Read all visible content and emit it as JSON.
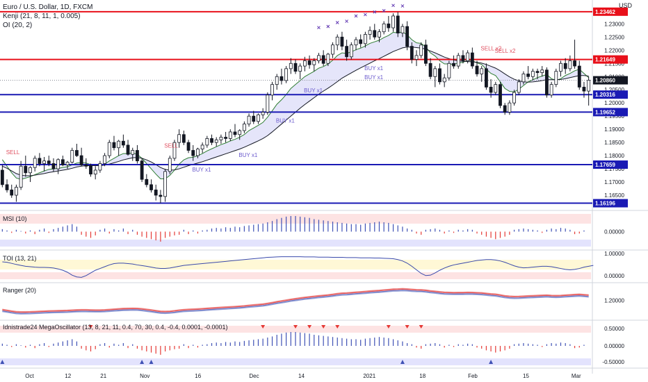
{
  "header": {
    "symbol": "Euro / U.S. Dollar, 1D, FXCM",
    "indicator1": "Kenji (21, 8, 11, 1, 0.005)",
    "indicator2": "OI (20, 2)",
    "currency": "USD"
  },
  "panes": {
    "msi": "MSI (10)",
    "toi": "TOI (13, 21)",
    "ranger": "Ranger (20)",
    "mega": "Idnistrade24 MegaOscillator (13, 8, 21, 11, 0.4, 70, 30, 0.4, -0.4, 0.0001, -0.0001)"
  },
  "colors": {
    "up": "#131722",
    "down": "#131722",
    "red_level": "#e8101a",
    "blue_level": "#1a1ab4",
    "signal_buy": "#6a5acd",
    "signal_sell": "#e05060",
    "band_fill": "#dcdcf8"
  },
  "chart_data": {
    "type": "candlestick",
    "ylim": [
      1.16,
      1.238
    ],
    "x_labels": [
      "Oct",
      "12",
      "21",
      "Nov",
      "16",
      "Dec",
      "14",
      "2021",
      "18",
      "Feb",
      "15",
      "Mar"
    ],
    "y_ticks": [
      "1.23000",
      "1.22500",
      "1.22000",
      "1.21500",
      "1.21000",
      "1.20500",
      "1.20000",
      "1.19500",
      "1.19000",
      "1.18500",
      "1.18000",
      "1.17500",
      "1.17000",
      "1.16500"
    ],
    "levels": [
      {
        "value": 1.23462,
        "label": "1.23462",
        "color": "red"
      },
      {
        "value": 1.21649,
        "label": "1.21649",
        "color": "red"
      },
      {
        "value": 1.20316,
        "label": "1.20316",
        "color": "blue"
      },
      {
        "value": 1.19652,
        "label": "1.19652",
        "color": "blue"
      },
      {
        "value": 1.17659,
        "label": "1.17659",
        "color": "blue"
      },
      {
        "value": 1.16196,
        "label": "1.16196",
        "color": "blue"
      }
    ],
    "last_price": {
      "value": 1.2086,
      "label": "1.20860"
    },
    "signals": [
      {
        "text": "SELL",
        "x_index": 2,
        "price": 1.1805,
        "kind": "sell"
      },
      {
        "text": "SELL",
        "x_index": 36,
        "price": 1.183,
        "kind": "sell"
      },
      {
        "text": "BUY x1",
        "x_index": 42,
        "price": 1.174,
        "kind": "buy"
      },
      {
        "text": "BUY x1",
        "x_index": 52,
        "price": 1.1795,
        "kind": "buy"
      },
      {
        "text": "BUY x1",
        "x_index": 60,
        "price": 1.1925,
        "kind": "buy"
      },
      {
        "text": "BUY x1",
        "x_index": 66,
        "price": 1.204,
        "kind": "buy"
      },
      {
        "text": "BUY x1",
        "x_index": 79,
        "price": 1.2125,
        "kind": "buy"
      },
      {
        "text": "BUY x1",
        "x_index": 79,
        "price": 1.209,
        "kind": "buy"
      },
      {
        "text": "SELL x2",
        "x_index": 104,
        "price": 1.22,
        "kind": "sell"
      },
      {
        "text": "SELL x2",
        "x_index": 107,
        "price": 1.219,
        "kind": "sell"
      }
    ],
    "oi_markers_price": [
      1.2286,
      1.229,
      1.2305,
      1.231,
      1.233,
      1.2335,
      1.2345,
      1.235,
      1.237,
      1.2368
    ],
    "candles": [
      [
        1.1745,
        1.1765,
        1.168,
        1.169
      ],
      [
        1.169,
        1.171,
        1.166,
        1.167
      ],
      [
        1.167,
        1.169,
        1.164,
        1.165
      ],
      [
        1.165,
        1.169,
        1.1625,
        1.168
      ],
      [
        1.168,
        1.178,
        1.167,
        1.176
      ],
      [
        1.176,
        1.18,
        1.172,
        1.1735
      ],
      [
        1.1735,
        1.176,
        1.17,
        1.1755
      ],
      [
        1.1755,
        1.18,
        1.174,
        1.179
      ],
      [
        1.179,
        1.181,
        1.176,
        1.177
      ],
      [
        1.177,
        1.1795,
        1.174,
        1.178
      ],
      [
        1.178,
        1.18,
        1.176,
        1.177
      ],
      [
        1.177,
        1.179,
        1.174,
        1.175
      ],
      [
        1.175,
        1.179,
        1.173,
        1.1785
      ],
      [
        1.1785,
        1.18,
        1.176,
        1.1765
      ],
      [
        1.1765,
        1.178,
        1.175,
        1.1775
      ],
      [
        1.1775,
        1.183,
        1.177,
        1.182
      ],
      [
        1.182,
        1.1845,
        1.1795,
        1.18
      ],
      [
        1.18,
        1.183,
        1.176,
        1.1765
      ],
      [
        1.1765,
        1.179,
        1.175,
        1.176
      ],
      [
        1.176,
        1.177,
        1.172,
        1.173
      ],
      [
        1.173,
        1.176,
        1.171,
        1.1745
      ],
      [
        1.1745,
        1.178,
        1.1735,
        1.177
      ],
      [
        1.177,
        1.181,
        1.176,
        1.18
      ],
      [
        1.18,
        1.186,
        1.179,
        1.185
      ],
      [
        1.185,
        1.1875,
        1.182,
        1.183
      ],
      [
        1.183,
        1.186,
        1.18,
        1.1855
      ],
      [
        1.1855,
        1.188,
        1.183,
        1.184
      ],
      [
        1.184,
        1.186,
        1.18,
        1.1805
      ],
      [
        1.1805,
        1.183,
        1.178,
        1.182
      ],
      [
        1.182,
        1.184,
        1.177,
        1.178
      ],
      [
        1.178,
        1.179,
        1.17,
        1.171
      ],
      [
        1.171,
        1.173,
        1.168,
        1.169
      ],
      [
        1.169,
        1.171,
        1.166,
        1.167
      ],
      [
        1.167,
        1.169,
        1.163,
        1.165
      ],
      [
        1.165,
        1.167,
        1.162,
        1.1645
      ],
      [
        1.1645,
        1.175,
        1.1625,
        1.174
      ],
      [
        1.174,
        1.18,
        1.173,
        1.179
      ],
      [
        1.179,
        1.186,
        1.178,
        1.185
      ],
      [
        1.185,
        1.19,
        1.183,
        1.188
      ],
      [
        1.188,
        1.1895,
        1.184,
        1.185
      ],
      [
        1.185,
        1.186,
        1.181,
        1.182
      ],
      [
        1.182,
        1.184,
        1.178,
        1.18
      ],
      [
        1.18,
        1.183,
        1.179,
        1.1825
      ],
      [
        1.1825,
        1.185,
        1.181,
        1.184
      ],
      [
        1.184,
        1.1875,
        1.183,
        1.1865
      ],
      [
        1.1865,
        1.188,
        1.184,
        1.185
      ],
      [
        1.185,
        1.187,
        1.1835,
        1.186
      ],
      [
        1.186,
        1.188,
        1.1845,
        1.187
      ],
      [
        1.187,
        1.189,
        1.185,
        1.1865
      ],
      [
        1.1865,
        1.19,
        1.1855,
        1.189
      ],
      [
        1.189,
        1.192,
        1.187,
        1.188
      ],
      [
        1.188,
        1.19,
        1.186,
        1.1895
      ],
      [
        1.1895,
        1.193,
        1.1885,
        1.192
      ],
      [
        1.192,
        1.196,
        1.191,
        1.195
      ],
      [
        1.195,
        1.197,
        1.192,
        1.193
      ],
      [
        1.193,
        1.196,
        1.192,
        1.1955
      ],
      [
        1.1955,
        1.198,
        1.194,
        1.1965
      ],
      [
        1.1965,
        1.204,
        1.1955,
        1.203
      ],
      [
        1.203,
        1.208,
        1.201,
        1.207
      ],
      [
        1.207,
        1.211,
        1.205,
        1.21
      ],
      [
        1.21,
        1.213,
        1.207,
        1.2085
      ],
      [
        1.2085,
        1.214,
        1.2075,
        1.213
      ],
      [
        1.213,
        1.217,
        1.211,
        1.215
      ],
      [
        1.215,
        1.2165,
        1.211,
        1.212
      ],
      [
        1.212,
        1.215,
        1.209,
        1.214
      ],
      [
        1.214,
        1.2175,
        1.212,
        1.216
      ],
      [
        1.216,
        1.218,
        1.213,
        1.2145
      ],
      [
        1.2145,
        1.217,
        1.212,
        1.216
      ],
      [
        1.216,
        1.219,
        1.215,
        1.218
      ],
      [
        1.218,
        1.22,
        1.214,
        1.215
      ],
      [
        1.215,
        1.219,
        1.214,
        1.2185
      ],
      [
        1.2185,
        1.223,
        1.217,
        1.222
      ],
      [
        1.222,
        1.226,
        1.22,
        1.225
      ],
      [
        1.225,
        1.227,
        1.22,
        1.2215
      ],
      [
        1.2215,
        1.224,
        1.216,
        1.2175
      ],
      [
        1.2175,
        1.223,
        1.2165,
        1.222
      ],
      [
        1.222,
        1.225,
        1.22,
        1.224
      ],
      [
        1.224,
        1.226,
        1.221,
        1.2225
      ],
      [
        1.2225,
        1.227,
        1.221,
        1.226
      ],
      [
        1.226,
        1.229,
        1.224,
        1.2275
      ],
      [
        1.2275,
        1.23,
        1.224,
        1.225
      ],
      [
        1.225,
        1.228,
        1.223,
        1.227
      ],
      [
        1.227,
        1.231,
        1.226,
        1.23
      ],
      [
        1.23,
        1.233,
        1.227,
        1.2285
      ],
      [
        1.2285,
        1.234,
        1.227,
        1.233
      ],
      [
        1.233,
        1.2345,
        1.225,
        1.2265
      ],
      [
        1.2265,
        1.23,
        1.225,
        1.229
      ],
      [
        1.229,
        1.231,
        1.22,
        1.2215
      ],
      [
        1.2215,
        1.223,
        1.215,
        1.2165
      ],
      [
        1.2165,
        1.22,
        1.214,
        1.218
      ],
      [
        1.218,
        1.223,
        1.217,
        1.222
      ],
      [
        1.222,
        1.224,
        1.214,
        1.215
      ],
      [
        1.215,
        1.217,
        1.209,
        1.21
      ],
      [
        1.21,
        1.214,
        1.206,
        1.213
      ],
      [
        1.213,
        1.215,
        1.207,
        1.208
      ],
      [
        1.208,
        1.211,
        1.206,
        1.2095
      ],
      [
        1.2095,
        1.216,
        1.2085,
        1.215
      ],
      [
        1.215,
        1.218,
        1.213,
        1.214
      ],
      [
        1.214,
        1.219,
        1.213,
        1.218
      ],
      [
        1.218,
        1.22,
        1.215,
        1.216
      ],
      [
        1.216,
        1.22,
        1.215,
        1.219
      ],
      [
        1.219,
        1.221,
        1.213,
        1.214
      ],
      [
        1.214,
        1.216,
        1.21,
        1.211
      ],
      [
        1.211,
        1.214,
        1.208,
        1.213
      ],
      [
        1.213,
        1.215,
        1.205,
        1.206
      ],
      [
        1.206,
        1.209,
        1.202,
        1.204
      ],
      [
        1.204,
        1.208,
        1.203,
        1.207
      ],
      [
        1.207,
        1.208,
        1.198,
        1.199
      ],
      [
        1.199,
        1.2,
        1.1955,
        1.1965
      ],
      [
        1.1965,
        1.201,
        1.1955,
        1.2
      ],
      [
        1.2,
        1.205,
        1.199,
        1.204
      ],
      [
        1.204,
        1.209,
        1.203,
        1.208
      ],
      [
        1.208,
        1.212,
        1.207,
        1.211
      ],
      [
        1.211,
        1.214,
        1.209,
        1.21
      ],
      [
        1.21,
        1.213,
        1.2085,
        1.212
      ],
      [
        1.212,
        1.213,
        1.209,
        1.2115
      ],
      [
        1.2115,
        1.214,
        1.21,
        1.2125
      ],
      [
        1.2125,
        1.2135,
        1.202,
        1.203
      ],
      [
        1.203,
        1.208,
        1.202,
        1.207
      ],
      [
        1.207,
        1.213,
        1.206,
        1.212
      ],
      [
        1.212,
        1.216,
        1.21,
        1.215
      ],
      [
        1.215,
        1.217,
        1.211,
        1.213
      ],
      [
        1.213,
        1.218,
        1.212,
        1.216
      ],
      [
        1.216,
        1.224,
        1.213,
        1.214
      ],
      [
        1.214,
        1.216,
        1.205,
        1.206
      ],
      [
        1.206,
        1.208,
        1.202,
        1.2045
      ],
      [
        1.2045,
        1.21,
        1.199,
        1.2086
      ]
    ],
    "kenji_fast": [
      1.1785,
      1.176,
      1.1735,
      1.1715,
      1.171,
      1.1715,
      1.172,
      1.1728,
      1.1735,
      1.1742,
      1.1748,
      1.175,
      1.1752,
      1.1755,
      1.1758,
      1.1765,
      1.1772,
      1.1774,
      1.1772,
      1.1766,
      1.1762,
      1.1762,
      1.1768,
      1.178,
      1.179,
      1.18,
      1.1808,
      1.1808,
      1.181,
      1.1805,
      1.179,
      1.177,
      1.175,
      1.173,
      1.1712,
      1.1712,
      1.1725,
      1.1745,
      1.1768,
      1.1784,
      1.1792,
      1.1794,
      1.18,
      1.1808,
      1.1818,
      1.1826,
      1.1834,
      1.1842,
      1.1848,
      1.1856,
      1.1862,
      1.187,
      1.188,
      1.1895,
      1.1905,
      1.1915,
      1.1926,
      1.1946,
      1.197,
      1.1995,
      1.2012,
      1.2032,
      1.2055,
      1.207,
      1.2085,
      1.21,
      1.211,
      1.212,
      1.2132,
      1.2138,
      1.2148,
      1.2162,
      1.218,
      1.219,
      1.2188,
      1.2194,
      1.2202,
      1.2208,
      1.2216,
      1.2226,
      1.2232,
      1.2238,
      1.2248,
      1.2256,
      1.2268,
      1.2266,
      1.227,
      1.2258,
      1.224,
      1.2228,
      1.2226,
      1.2212,
      1.219,
      1.2178,
      1.216,
      1.2148,
      1.2148,
      1.2146,
      1.2152,
      1.2154,
      1.2162,
      1.216,
      1.2152,
      1.2146,
      1.2128,
      1.2112,
      1.2104,
      1.208,
      1.2055,
      1.2044,
      1.2042,
      1.2052,
      1.2066,
      1.208,
      1.2088,
      1.2096,
      1.2102,
      1.2108,
      1.2092,
      1.2086,
      1.2092,
      1.2104,
      1.2112,
      1.2122,
      1.2128,
      1.2112,
      1.2096,
      1.2093
    ],
    "kenji_slow": [
      1.176,
      1.1752,
      1.1742,
      1.1732,
      1.1726,
      1.1724,
      1.1724,
      1.1726,
      1.1729,
      1.1732,
      1.1736,
      1.1739,
      1.1742,
      1.1745,
      1.1748,
      1.1752,
      1.1757,
      1.176,
      1.1762,
      1.1762,
      1.1762,
      1.1762,
      1.1764,
      1.1768,
      1.1773,
      1.1778,
      1.1784,
      1.1788,
      1.1792,
      1.1793,
      1.179,
      1.1784,
      1.1776,
      1.1766,
      1.1755,
      1.1748,
      1.1745,
      1.1746,
      1.175,
      1.1756,
      1.1762,
      1.1767,
      1.1772,
      1.1777,
      1.1783,
      1.1789,
      1.1795,
      1.1801,
      1.1807,
      1.1813,
      1.1819,
      1.1825,
      1.1832,
      1.184,
      1.1848,
      1.1856,
      1.1865,
      1.1876,
      1.189,
      1.1905,
      1.192,
      1.1935,
      1.195,
      1.1965,
      1.198,
      1.1994,
      1.2007,
      1.202,
      1.2033,
      1.2045,
      1.2056,
      1.2068,
      1.2081,
      1.2094,
      1.2104,
      1.2114,
      1.2124,
      1.2133,
      1.2142,
      1.2151,
      1.216,
      1.2168,
      1.2177,
      1.2186,
      1.2195,
      1.2202,
      1.2209,
      1.2212,
      1.2212,
      1.221,
      1.2208,
      1.2204,
      1.2197,
      1.219,
      1.2182,
      1.2174,
      1.2168,
      1.2163,
      1.216,
      1.2158,
      1.2157,
      1.2156,
      1.2154,
      1.2151,
      1.2146,
      1.2139,
      1.2132,
      1.2122,
      1.211,
      1.2099,
      1.209,
      1.2084,
      1.208,
      1.2079,
      1.208,
      1.2082,
      1.2085,
      1.2088,
      1.2088,
      1.2088,
      1.2089,
      1.2092,
      1.2096,
      1.21,
      1.2104,
      1.2104,
      1.2102,
      1.2101
    ],
    "msi": [
      0.04,
      0.02,
      -0.02,
      0.03,
      0.01,
      -0.03,
      0.02,
      -0.04,
      0.03,
      0.05,
      -0.02,
      0.04,
      0.06,
      0.08,
      0.1,
      0.12,
      0.08,
      -0.05,
      -0.08,
      -0.1,
      -0.06,
      0.03,
      0.05,
      -0.03,
      0.04,
      0.02,
      0.05,
      -0.04,
      0.03,
      -0.05,
      -0.08,
      -0.1,
      -0.12,
      -0.14,
      -0.16,
      -0.1,
      -0.08,
      -0.06,
      -0.05,
      0.03,
      -0.04,
      0.02,
      -0.03,
      0.02,
      0.03,
      0.05,
      0.06,
      0.05,
      0.07,
      0.06,
      0.08,
      0.07,
      0.09,
      0.1,
      0.11,
      0.12,
      0.13,
      0.15,
      0.17,
      0.2,
      0.22,
      0.24,
      0.25,
      0.25,
      0.24,
      0.23,
      0.22,
      0.2,
      0.19,
      0.18,
      0.17,
      0.16,
      0.15,
      0.14,
      0.13,
      0.12,
      0.12,
      0.11,
      0.13,
      0.14,
      0.15,
      0.16,
      0.15,
      0.14,
      0.12,
      0.1,
      0.08,
      0.05,
      0.03,
      -0.03,
      -0.05,
      0.03,
      0.04,
      0.05,
      0.03,
      -0.03,
      0.02,
      -0.02,
      0.03,
      0.02,
      0.04,
      0.03,
      -0.03,
      -0.05,
      -0.08,
      -0.1,
      -0.12,
      -0.1,
      -0.08,
      -0.05,
      0.03,
      0.04,
      0.05,
      0.04,
      0.03,
      0.02,
      -0.02,
      0.03,
      0.05,
      0.04,
      0.06,
      0.05,
      0.03,
      -0.04,
      -0.03,
      0.02
    ],
    "toi": [
      0.72,
      0.7,
      0.65,
      0.6,
      0.56,
      0.52,
      0.5,
      0.48,
      0.47,
      0.47,
      0.46,
      0.44,
      0.4,
      0.34,
      0.25,
      0.12,
      0.04,
      0.02,
      0.1,
      0.22,
      0.34,
      0.42,
      0.5,
      0.58,
      0.64,
      0.66,
      0.66,
      0.64,
      0.62,
      0.58,
      0.55,
      0.52,
      0.48,
      0.44,
      0.42,
      0.42,
      0.44,
      0.48,
      0.52,
      0.56,
      0.58,
      0.6,
      0.62,
      0.64,
      0.66,
      0.68,
      0.7,
      0.72,
      0.74,
      0.76,
      0.78,
      0.8,
      0.82,
      0.84,
      0.86,
      0.88,
      0.9,
      0.92,
      0.93,
      0.94,
      0.95,
      0.95,
      0.95,
      0.95,
      0.95,
      0.94,
      0.94,
      0.94,
      0.93,
      0.93,
      0.93,
      0.92,
      0.92,
      0.92,
      0.91,
      0.91,
      0.91,
      0.9,
      0.9,
      0.9,
      0.89,
      0.89,
      0.88,
      0.87,
      0.86,
      0.82,
      0.76,
      0.66,
      0.52,
      0.36,
      0.2,
      0.1,
      0.12,
      0.22,
      0.34,
      0.44,
      0.52,
      0.58,
      0.62,
      0.66,
      0.7,
      0.74,
      0.78,
      0.8,
      0.82,
      0.82,
      0.8,
      0.76,
      0.7,
      0.62,
      0.54,
      0.48,
      0.45,
      0.46,
      0.48,
      0.5,
      0.52,
      0.52,
      0.5,
      0.46,
      0.42,
      0.38,
      0.36,
      0.38,
      0.42,
      0.48,
      0.52,
      0.56
    ]
  }
}
